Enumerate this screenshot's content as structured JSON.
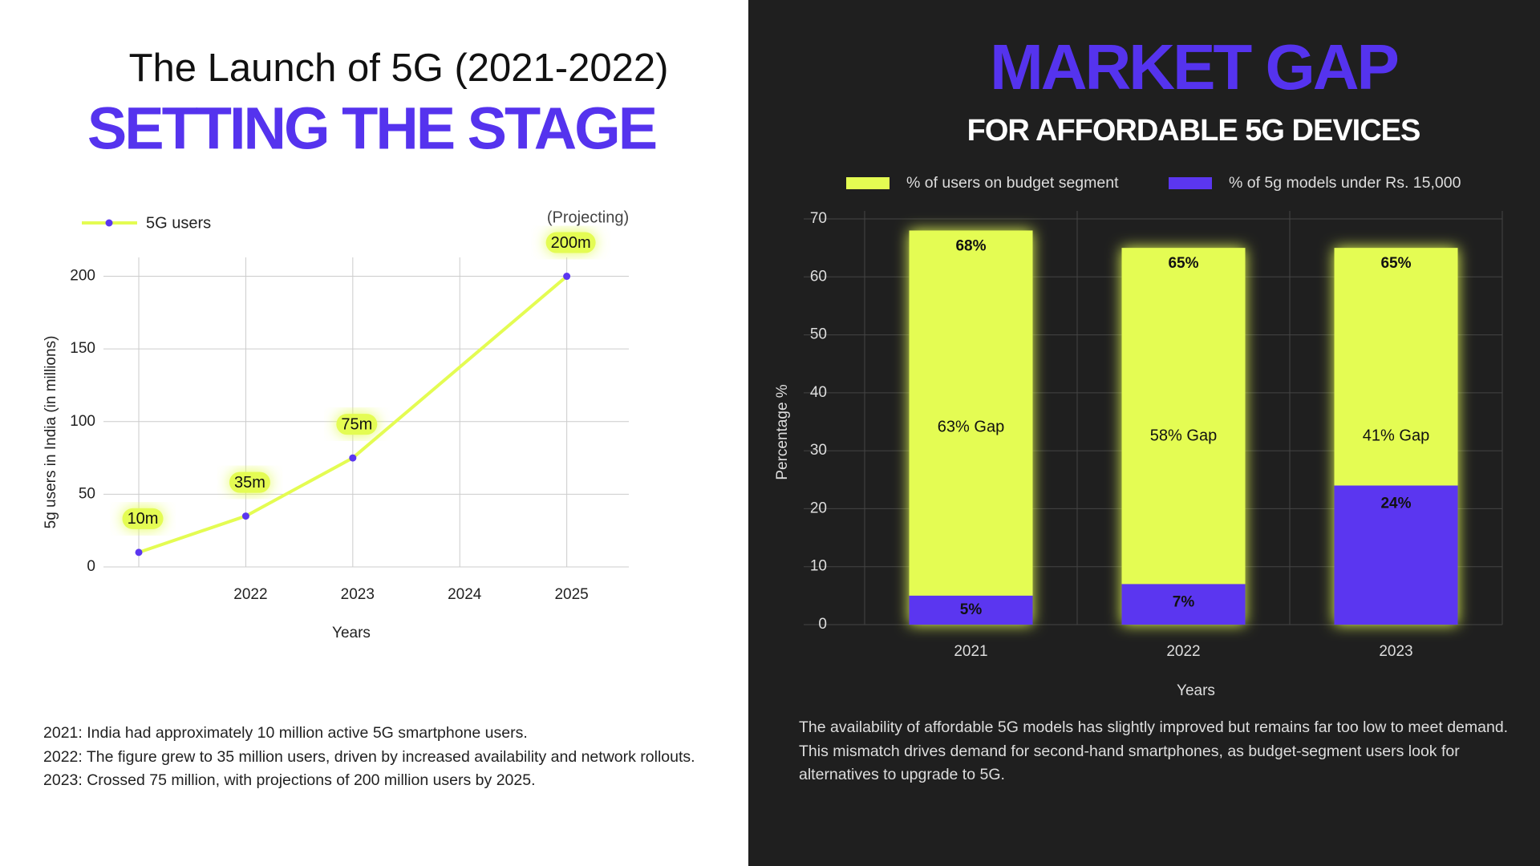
{
  "chart_data": [
    {
      "type": "line",
      "title": "The Launch of 5G (2021-2022)",
      "subtitle": "SETTING THE STAGE",
      "x_label": "Years",
      "y_label": "5g users in India (in millions)",
      "annotation": "(Projecting)",
      "x": [
        2021,
        2022,
        2023,
        2025
      ],
      "xlim": [
        2020.67,
        2025.58
      ],
      "xticks": [
        2022,
        2023,
        2024,
        2025
      ],
      "ylim": [
        0,
        213
      ],
      "yticks": [
        0,
        50,
        100,
        150,
        200
      ],
      "grid": true,
      "legend": "top-left",
      "series": [
        {
          "name": "5G users",
          "color": "#e4fc52",
          "marker_color": "#5b36f0",
          "values": [
            10,
            35,
            75,
            200
          ],
          "value_labels": [
            "10m",
            "35m",
            "75m",
            "200m"
          ]
        }
      ]
    },
    {
      "type": "bar",
      "overlap": true,
      "title": "MARKET GAP",
      "subtitle": "FOR AFFORDABLE 5G DEVICES",
      "x_label": "Years",
      "y_label": "Percentage %",
      "categories": [
        "2021",
        "2022",
        "2023"
      ],
      "ylim": [
        0,
        70
      ],
      "yticks": [
        0,
        10,
        20,
        30,
        40,
        50,
        60,
        70
      ],
      "grid": true,
      "legend": "top",
      "series": [
        {
          "name": "% of users on budget segment",
          "color": "#e4fc52",
          "values": [
            68,
            65,
            65
          ],
          "value_labels": [
            "68%",
            "65%",
            "65%"
          ]
        },
        {
          "name": "% of 5g models under Rs. 15,000",
          "color": "#5b36f0",
          "values": [
            5,
            7,
            24
          ],
          "value_labels": [
            "5%",
            "7%",
            "24%"
          ]
        }
      ],
      "gap_labels": [
        "63% Gap",
        "58% Gap",
        "41% Gap"
      ]
    }
  ],
  "notes": [
    [
      "2021: India had approximately 10 million active 5G smartphone users.",
      "2022: The figure grew to 35 million users, driven by increased availability and network rollouts.",
      "2023: Crossed 75 million, with projections of 200 million users by 2025."
    ],
    [
      "The availability of affordable 5G models has slightly improved but remains far too low to meet demand.",
      "This mismatch drives demand for second-hand smartphones, as budget-segment users look for alternatives to upgrade to 5G."
    ]
  ]
}
